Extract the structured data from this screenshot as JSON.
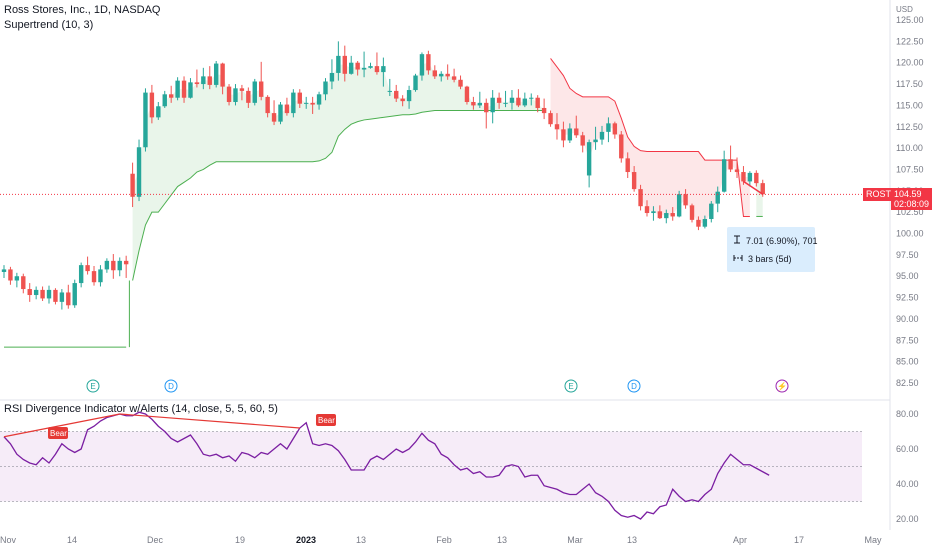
{
  "header": {
    "title": "Ross Stores, Inc., 1D, NASDAQ",
    "indicator": "Supertrend (10, 3)",
    "rsi_indicator": "RSI Divergence Indicator w/Alerts (14, close, 5, 5, 60, 5)"
  },
  "currency": "USD",
  "symbol": {
    "ticker": "ROST",
    "price": "104.59",
    "countdown": "02:08:09"
  },
  "measure": {
    "change": "7.01 (6.90%), 701",
    "bars": "3 bars (5d)"
  },
  "colors": {
    "up": "#26a69a",
    "down": "#ef5350",
    "rsi_line": "#7b1fa2",
    "supertrend_up": "#4caf50",
    "supertrend_down": "#f23645",
    "divergence": "#e53935"
  },
  "price_axis": [
    "125.00",
    "122.50",
    "120.00",
    "117.50",
    "115.00",
    "112.50",
    "110.00",
    "107.50",
    "105.00",
    "102.50",
    "100.00",
    "97.50",
    "95.00",
    "92.50",
    "90.00",
    "87.50",
    "85.00",
    "82.50"
  ],
  "rsi_axis": [
    "80.00",
    "60.00",
    "40.00",
    "20.00"
  ],
  "time_axis": [
    "Nov",
    "14",
    "Dec",
    "19",
    "2023",
    "13",
    "Feb",
    "13",
    "Mar",
    "13",
    "Apr",
    "17",
    "May"
  ],
  "events": [
    {
      "label": "E",
      "icon": "earnings-icon"
    },
    {
      "label": "D",
      "icon": "dividend-icon"
    },
    {
      "label": "E",
      "icon": "earnings-icon"
    },
    {
      "label": "D",
      "icon": "dividend-icon"
    },
    {
      "label": "⚡",
      "icon": "split-icon"
    }
  ],
  "bear_labels": [
    "Bear",
    "Bear"
  ],
  "chart_data": [
    {
      "type": "candlestick",
      "title": "Ross Stores, Inc., 1D, NASDAQ",
      "ylim": [
        81,
        126
      ],
      "ohlc": [
        [
          95.5,
          96.3,
          94.8,
          95.8
        ],
        [
          95.8,
          96.1,
          94.0,
          94.5
        ],
        [
          94.5,
          95.4,
          93.7,
          95.0
        ],
        [
          95.0,
          95.3,
          93.0,
          93.5
        ],
        [
          93.5,
          94.2,
          92.0,
          92.8
        ],
        [
          92.8,
          93.8,
          92.3,
          93.4
        ],
        [
          93.4,
          93.8,
          92.1,
          92.4
        ],
        [
          92.4,
          93.9,
          91.8,
          93.4
        ],
        [
          93.4,
          93.6,
          91.7,
          92.0
        ],
        [
          92.0,
          93.5,
          91.1,
          93.1
        ],
        [
          93.1,
          94.0,
          91.2,
          91.6
        ],
        [
          91.6,
          94.6,
          91.3,
          94.2
        ],
        [
          94.2,
          96.6,
          93.7,
          96.3
        ],
        [
          96.3,
          97.3,
          95.2,
          95.6
        ],
        [
          95.6,
          96.2,
          93.9,
          94.3
        ],
        [
          94.3,
          96.3,
          93.8,
          95.8
        ],
        [
          95.8,
          97.1,
          95.4,
          96.8
        ],
        [
          96.8,
          97.6,
          94.7,
          95.7
        ],
        [
          95.7,
          97.2,
          95.0,
          96.8
        ],
        [
          96.8,
          97.4,
          94.8,
          96.4
        ],
        [
          107.0,
          108.3,
          103.1,
          104.3
        ],
        [
          104.3,
          111.0,
          103.8,
          110.1
        ],
        [
          110.1,
          117.0,
          109.6,
          116.5
        ],
        [
          116.5,
          117.4,
          112.9,
          113.6
        ],
        [
          113.6,
          115.4,
          113.3,
          114.9
        ],
        [
          114.9,
          116.7,
          114.7,
          116.3
        ],
        [
          116.3,
          117.3,
          115.3,
          115.9
        ],
        [
          115.9,
          118.3,
          115.6,
          117.9
        ],
        [
          117.9,
          118.4,
          115.3,
          115.9
        ],
        [
          115.9,
          118.2,
          115.8,
          117.7
        ],
        [
          117.7,
          119.2,
          117.1,
          117.5
        ],
        [
          117.5,
          119.4,
          116.9,
          118.4
        ],
        [
          118.4,
          119.6,
          116.9,
          117.4
        ],
        [
          117.4,
          120.2,
          117.1,
          119.9
        ],
        [
          119.9,
          120.0,
          116.3,
          117.2
        ],
        [
          117.2,
          117.5,
          115.0,
          115.4
        ],
        [
          115.4,
          117.5,
          115.0,
          117.0
        ],
        [
          117.0,
          117.4,
          115.6,
          116.7
        ],
        [
          116.7,
          117.1,
          114.7,
          115.3
        ],
        [
          115.3,
          118.1,
          115.0,
          117.8
        ],
        [
          117.8,
          120.1,
          115.6,
          116.0
        ],
        [
          116.0,
          116.2,
          113.6,
          114.1
        ],
        [
          114.1,
          115.6,
          112.7,
          113.1
        ],
        [
          113.1,
          115.4,
          112.8,
          115.1
        ],
        [
          115.1,
          115.9,
          113.8,
          114.1
        ],
        [
          114.1,
          116.9,
          113.6,
          116.5
        ],
        [
          116.5,
          116.9,
          114.7,
          115.2
        ],
        [
          115.2,
          116.0,
          114.6,
          115.3
        ],
        [
          115.3,
          116.0,
          114.0,
          115.1
        ],
        [
          115.1,
          116.6,
          114.5,
          116.3
        ],
        [
          116.3,
          118.2,
          115.6,
          117.8
        ],
        [
          117.8,
          120.4,
          116.9,
          118.8
        ],
        [
          118.8,
          122.5,
          117.9,
          120.8
        ],
        [
          120.8,
          122.0,
          117.8,
          118.7
        ],
        [
          118.7,
          120.8,
          118.6,
          120.0
        ],
        [
          120.0,
          120.2,
          118.5,
          119.2
        ],
        [
          119.2,
          121.3,
          118.3,
          119.4
        ],
        [
          119.4,
          120.0,
          119.3,
          119.6
        ],
        [
          119.6,
          121.2,
          118.6,
          118.9
        ],
        [
          118.9,
          120.6,
          117.2,
          119.6
        ],
        [
          116.7,
          118.1,
          116.1,
          116.7
        ],
        [
          116.7,
          117.4,
          115.4,
          115.8
        ],
        [
          115.8,
          116.2,
          114.9,
          115.5
        ],
        [
          115.5,
          117.3,
          114.6,
          116.8
        ],
        [
          116.8,
          118.7,
          116.6,
          118.5
        ],
        [
          118.5,
          121.2,
          117.9,
          121.0
        ],
        [
          121.0,
          121.4,
          118.6,
          119.1
        ],
        [
          119.1,
          119.7,
          118.1,
          118.4
        ],
        [
          118.4,
          119.0,
          117.8,
          118.7
        ],
        [
          118.7,
          119.8,
          118.0,
          118.4
        ],
        [
          118.4,
          119.3,
          117.7,
          118.0
        ],
        [
          118.0,
          118.5,
          116.9,
          117.2
        ],
        [
          117.2,
          117.3,
          115.1,
          115.4
        ],
        [
          115.4,
          116.0,
          114.5,
          115.0
        ],
        [
          115.0,
          116.6,
          114.7,
          115.3
        ],
        [
          115.3,
          115.8,
          112.3,
          114.2
        ],
        [
          114.2,
          116.8,
          112.9,
          115.9
        ],
        [
          115.9,
          116.5,
          114.6,
          115.3
        ],
        [
          115.3,
          116.7,
          114.8,
          115.3
        ],
        [
          115.3,
          116.8,
          114.5,
          115.9
        ],
        [
          115.9,
          116.9,
          114.8,
          115.0
        ],
        [
          115.0,
          116.5,
          114.8,
          115.8
        ],
        [
          115.8,
          116.4,
          115.0,
          115.9
        ],
        [
          115.9,
          116.2,
          114.2,
          114.7
        ],
        [
          114.7,
          115.8,
          113.4,
          114.1
        ],
        [
          114.1,
          114.4,
          112.5,
          112.8
        ],
        [
          112.8,
          114.1,
          111.0,
          112.2
        ],
        [
          112.2,
          113.1,
          110.1,
          110.9
        ],
        [
          110.9,
          112.9,
          110.6,
          112.3
        ],
        [
          112.3,
          113.8,
          111.2,
          111.5
        ],
        [
          111.5,
          111.9,
          109.5,
          110.3
        ],
        [
          106.8,
          111.0,
          105.4,
          110.7
        ],
        [
          110.7,
          112.5,
          109.8,
          111.0
        ],
        [
          111.0,
          112.6,
          110.4,
          111.9
        ],
        [
          111.9,
          113.6,
          110.7,
          112.9
        ],
        [
          112.9,
          113.1,
          111.1,
          111.6
        ],
        [
          111.6,
          112.0,
          108.3,
          108.8
        ],
        [
          108.8,
          109.5,
          106.5,
          107.2
        ],
        [
          107.2,
          107.9,
          104.9,
          105.2
        ],
        [
          105.2,
          105.7,
          102.7,
          103.2
        ],
        [
          103.2,
          103.9,
          102.0,
          102.4
        ],
        [
          102.4,
          103.2,
          101.5,
          102.6
        ],
        [
          102.6,
          103.3,
          101.7,
          101.8
        ],
        [
          101.8,
          102.8,
          101.2,
          102.4
        ],
        [
          102.4,
          103.1,
          101.5,
          102.0
        ],
        [
          102.0,
          105.0,
          101.9,
          104.6
        ],
        [
          104.6,
          105.2,
          102.9,
          103.3
        ],
        [
          103.3,
          103.5,
          101.3,
          101.6
        ],
        [
          101.6,
          102.0,
          100.4,
          100.8
        ],
        [
          100.8,
          102.1,
          100.6,
          101.7
        ],
        [
          101.7,
          103.8,
          101.3,
          103.5
        ],
        [
          103.5,
          105.5,
          102.5,
          104.9
        ],
        [
          104.9,
          109.7,
          104.8,
          108.7
        ],
        [
          108.7,
          110.3,
          107.2,
          107.5
        ],
        [
          107.5,
          108.9,
          106.5,
          107.2
        ],
        [
          107.2,
          107.9,
          105.7,
          106.1
        ],
        [
          106.1,
          107.3,
          105.5,
          107.1
        ],
        [
          107.1,
          107.4,
          105.5,
          105.9
        ],
        [
          105.9,
          106.3,
          104.3,
          104.6
        ]
      ],
      "supertrend": [
        86.7,
        86.7,
        86.7,
        86.7,
        86.7,
        86.7,
        86.7,
        86.7,
        86.7,
        86.7,
        86.7,
        86.7,
        86.7,
        86.7,
        86.7,
        86.7,
        86.7,
        86.7,
        86.7,
        86.7,
        94.5,
        98.0,
        101.0,
        102.5,
        102.5,
        103.5,
        104.5,
        105.5,
        106.0,
        106.5,
        107.2,
        107.5,
        108.0,
        108.4,
        108.4,
        108.4,
        108.4,
        108.4,
        108.4,
        108.4,
        108.4,
        108.4,
        108.4,
        108.4,
        108.4,
        108.4,
        108.4,
        108.4,
        108.4,
        108.5,
        108.8,
        109.5,
        111.4,
        112.2,
        112.8,
        113.1,
        113.3,
        113.4,
        113.5,
        113.6,
        113.7,
        113.8,
        113.9,
        113.9,
        114.0,
        114.2,
        114.3,
        114.4,
        114.4,
        114.4,
        114.4,
        114.4,
        114.4,
        114.4,
        114.4,
        114.4,
        114.4,
        114.4,
        114.4,
        114.4,
        114.4,
        114.4,
        114.4,
        114.4,
        114.4,
        120.5,
        119.5,
        118.5,
        117.0,
        116.4,
        116.0,
        116.0,
        116.0,
        116.0,
        116.0,
        115.5,
        113.5,
        111.3,
        110.2,
        109.7,
        109.6,
        109.6,
        109.6,
        109.6,
        109.6,
        109.6,
        109.6,
        109.6,
        109.6,
        108.6,
        108.6,
        108.6,
        108.6,
        108.6,
        108.6,
        102.0,
        102.0,
        102.0,
        102.0,
        102.0
      ],
      "supertrend_flip_index": 85,
      "supertrend_up_again_index": 117,
      "measure": {
        "change": 7.01,
        "change_pct": 6.9,
        "bars": 3
      }
    },
    {
      "type": "line",
      "title": "RSI Divergence Indicator w/Alerts (14, close, 5, 5, 60, 5)",
      "ylim": [
        15,
        85
      ],
      "bands": [
        30,
        50,
        70
      ],
      "values": [
        67,
        63,
        57,
        54,
        52,
        51,
        55,
        52,
        57,
        63,
        60,
        58,
        60,
        71,
        73,
        76,
        78,
        79,
        80,
        79,
        79,
        81,
        80,
        77,
        73,
        70,
        66,
        64,
        66,
        68,
        63,
        57,
        56,
        57,
        55,
        56,
        53,
        58,
        57,
        55,
        58,
        57,
        60,
        63,
        60,
        66,
        72,
        75,
        63,
        62,
        63,
        62,
        59,
        54,
        48,
        48,
        48,
        54,
        56,
        54,
        57,
        60,
        58,
        60,
        64,
        69,
        65,
        63,
        57,
        55,
        51,
        48,
        49,
        46,
        47,
        44,
        44,
        45,
        50,
        51,
        50,
        44,
        45,
        45,
        39,
        38,
        37,
        35,
        34,
        34,
        37,
        40,
        35,
        33,
        30,
        25,
        22,
        21,
        22,
        20,
        24,
        23,
        27,
        28,
        37,
        33,
        30,
        31,
        30,
        34,
        37,
        46,
        52,
        57,
        54,
        51,
        51,
        49,
        47,
        45
      ],
      "divergence_segments": [
        {
          "from": 0,
          "to": 18,
          "label": "Bear"
        },
        {
          "from": 18,
          "to": 46,
          "label": "Bear"
        }
      ]
    }
  ]
}
